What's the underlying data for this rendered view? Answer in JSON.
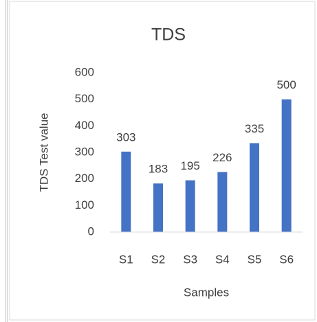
{
  "chart_data": {
    "type": "bar",
    "title": "TDS",
    "x_label": "Samples",
    "y_label": "TDS Test value",
    "categories": [
      "S1",
      "S2",
      "S3",
      "S4",
      "S5",
      "S6"
    ],
    "values": [
      303,
      183,
      195,
      226,
      335,
      500
    ],
    "color": "#4472c4",
    "ylim": [
      0,
      600
    ],
    "yticks": [
      0,
      100,
      200,
      300,
      400,
      500,
      600
    ],
    "grid": false
  }
}
